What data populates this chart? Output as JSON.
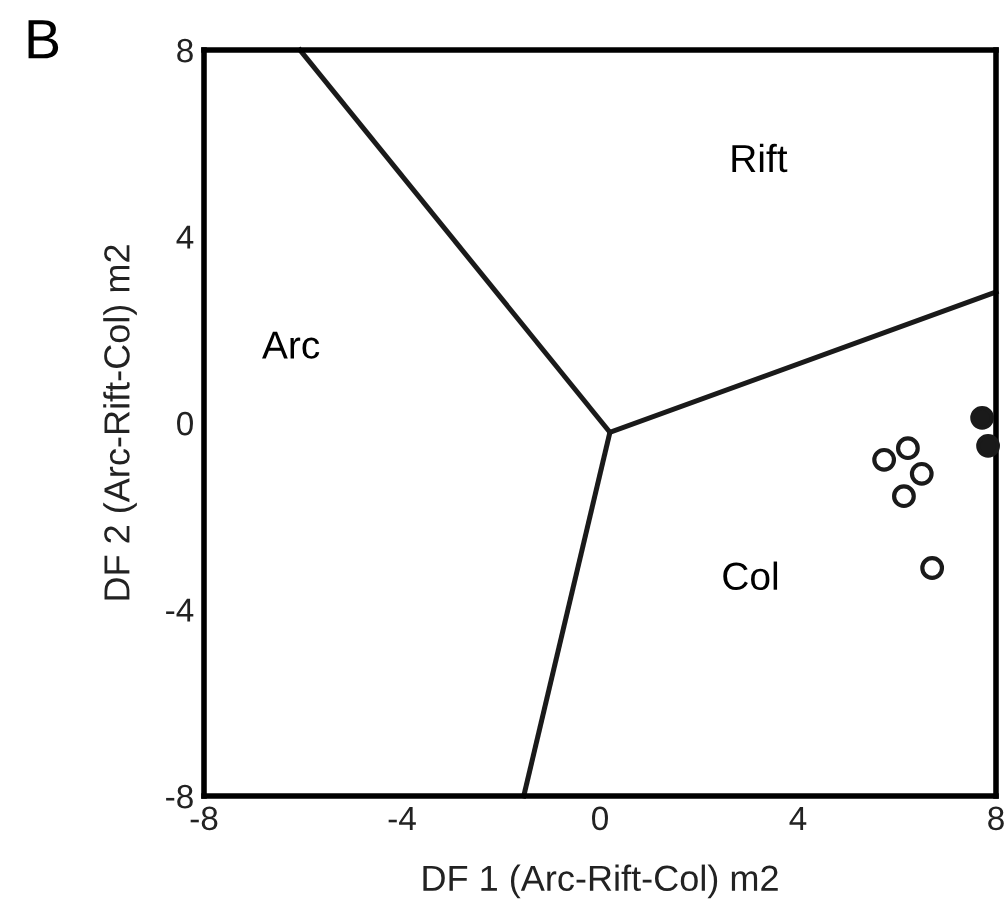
{
  "chart_data": {
    "type": "scatter",
    "title": "B",
    "xlabel": "DF 1 (Arc-Rift-Col) m2",
    "ylabel": "DF 2 (Arc-Rift-Col) m2",
    "xlim": [
      -8,
      8
    ],
    "ylim": [
      -8,
      8
    ],
    "xticks": [
      -8,
      -4,
      0,
      4,
      8
    ],
    "yticks": [
      -8,
      -4,
      0,
      4,
      8
    ],
    "grid": false,
    "legend": false,
    "series": [
      {
        "type": "line",
        "color": "#1a1a1a",
        "x": [
          -6.06,
          0.2
        ],
        "values": [
          8,
          -0.2
        ],
        "marker": "none"
      },
      {
        "type": "line",
        "color": "#1a1a1a",
        "x": [
          0.2,
          8
        ],
        "values": [
          -0.2,
          2.81
        ],
        "marker": "none"
      },
      {
        "type": "line",
        "color": "#1a1a1a",
        "x": [
          0.2,
          -1.54
        ],
        "values": [
          -0.2,
          -8
        ],
        "marker": "none"
      },
      {
        "color": "#ffffff",
        "x": [
          5.74,
          6.22,
          6.5,
          6.14,
          6.71
        ],
        "values": [
          -0.79,
          -0.54,
          -1.09,
          -1.57,
          -3.11
        ],
        "marker": "circle"
      },
      {
        "color": "#1a1a1a",
        "x": [
          7.72,
          7.84
        ],
        "values": [
          0.11,
          -0.49
        ],
        "marker": "circle"
      }
    ],
    "annotations": [
      "Rift",
      "Arc",
      "Col"
    ]
  }
}
